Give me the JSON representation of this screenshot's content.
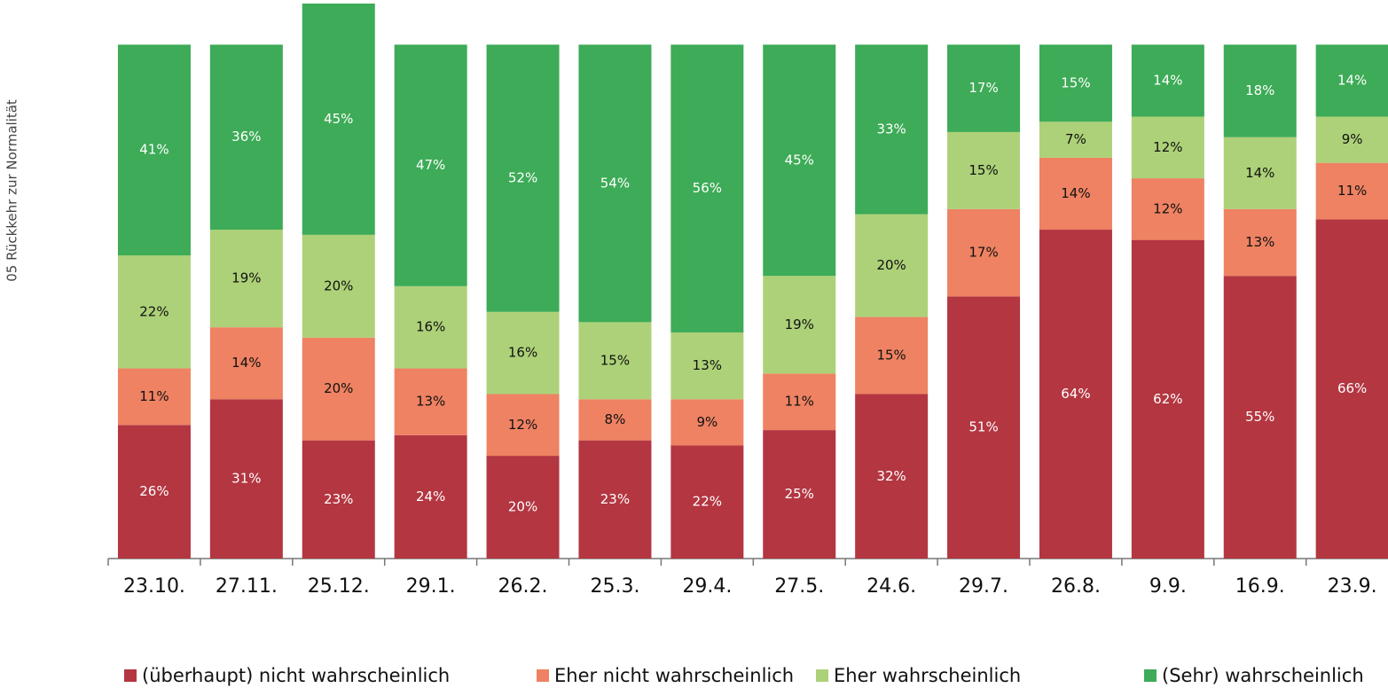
{
  "chart_data": {
    "type": "stacked_bar",
    "y_label": "05 Rückkehr zur Normalität",
    "categories": [
      "23.10.",
      "27.11.",
      "25.12.",
      "29.1.",
      "26.2.",
      "25.3.",
      "29.4.",
      "27.5.",
      "24.6.",
      "29.7.",
      "26.8.",
      "9.9.",
      "16.9.",
      "23.9."
    ],
    "series": [
      {
        "name": "(überhaupt) nicht wahrscheinlich",
        "color": "#b33641",
        "values": [
          26,
          31,
          23,
          24,
          20,
          23,
          22,
          25,
          32,
          51,
          64,
          62,
          55,
          66
        ],
        "value_labels": [
          "26%",
          "31%",
          "23%",
          "24%",
          "20%",
          "23%",
          "22%",
          "25%",
          "32%",
          "51%",
          "64%",
          "62%",
          "55%",
          "66%"
        ]
      },
      {
        "name": "Eher nicht wahrscheinlich",
        "color": "#ee8262",
        "values": [
          11,
          14,
          20,
          13,
          12,
          8,
          9,
          11,
          15,
          17,
          14,
          12,
          13,
          11
        ],
        "value_labels": [
          "11%",
          "14%",
          "20%",
          "13%",
          "12%",
          "8%",
          "9%",
          "11%",
          "15%",
          "17%",
          "14%",
          "12%",
          "13%",
          "11%"
        ]
      },
      {
        "name": "Eher wahrscheinlich",
        "color": "#add178",
        "values": [
          22,
          19,
          20,
          16,
          16,
          15,
          13,
          19,
          20,
          15,
          7,
          12,
          14,
          9
        ],
        "value_labels": [
          "22%",
          "19%",
          "20%",
          "16%",
          "16%",
          "15%",
          "13%",
          "19%",
          "20%",
          "15%",
          "7%",
          "12%",
          "14%",
          "9%"
        ]
      },
      {
        "name": "(Sehr) wahrscheinlich",
        "color": "#3dab57",
        "values": [
          41,
          36,
          45,
          47,
          52,
          54,
          56,
          45,
          33,
          17,
          15,
          14,
          18,
          14
        ],
        "value_labels": [
          "41%",
          "36%",
          "45%",
          "47%",
          "52%",
          "54%",
          "56%",
          "45%",
          "33%",
          "17%",
          "15%",
          "14%",
          "18%",
          "14%"
        ]
      }
    ]
  }
}
